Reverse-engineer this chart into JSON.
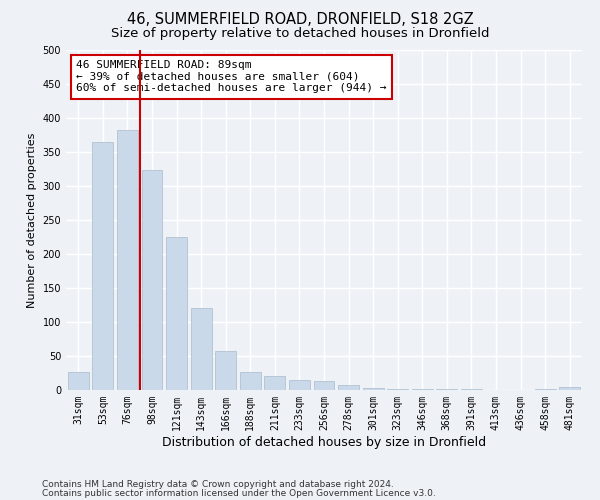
{
  "title1": "46, SUMMERFIELD ROAD, DRONFIELD, S18 2GZ",
  "title2": "Size of property relative to detached houses in Dronfield",
  "xlabel": "Distribution of detached houses by size in Dronfield",
  "ylabel": "Number of detached properties",
  "categories": [
    "31sqm",
    "53sqm",
    "76sqm",
    "98sqm",
    "121sqm",
    "143sqm",
    "166sqm",
    "188sqm",
    "211sqm",
    "233sqm",
    "256sqm",
    "278sqm",
    "301sqm",
    "323sqm",
    "346sqm",
    "368sqm",
    "391sqm",
    "413sqm",
    "436sqm",
    "458sqm",
    "481sqm"
  ],
  "values": [
    27,
    365,
    382,
    323,
    225,
    120,
    57,
    27,
    20,
    15,
    13,
    7,
    3,
    2,
    1,
    1,
    1,
    0,
    0,
    1,
    4
  ],
  "bar_color": "#c9d9ea",
  "bar_edge_color": "#aabbcc",
  "vline_color": "#cc0000",
  "vline_x": 2.5,
  "annotation_text": "46 SUMMERFIELD ROAD: 89sqm\n← 39% of detached houses are smaller (604)\n60% of semi-detached houses are larger (944) →",
  "annotation_box_color": "#ffffff",
  "annotation_box_edge": "#cc0000",
  "ylim": [
    0,
    500
  ],
  "yticks": [
    0,
    50,
    100,
    150,
    200,
    250,
    300,
    350,
    400,
    450,
    500
  ],
  "footer1": "Contains HM Land Registry data © Crown copyright and database right 2024.",
  "footer2": "Contains public sector information licensed under the Open Government Licence v3.0.",
  "background_color": "#eef2f7",
  "grid_color": "#ffffff",
  "title1_fontsize": 10.5,
  "title2_fontsize": 9.5,
  "xlabel_fontsize": 9,
  "ylabel_fontsize": 8,
  "tick_fontsize": 7,
  "annotation_fontsize": 8,
  "footer_fontsize": 6.5
}
